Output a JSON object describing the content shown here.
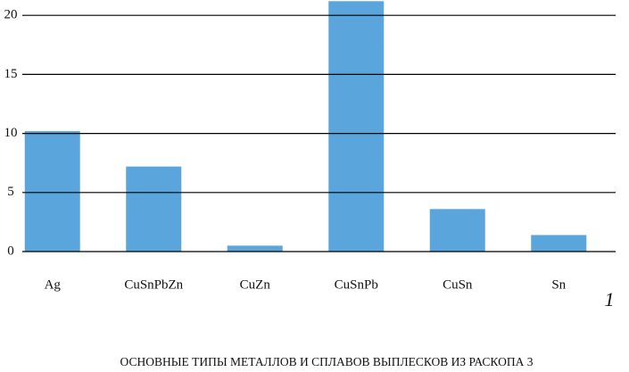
{
  "chart_data": {
    "type": "bar",
    "categories": [
      "Ag",
      "CuSnPbZn",
      "CuZn",
      "CuSnPb",
      "CuSn",
      "Sn"
    ],
    "values": [
      10.2,
      7.2,
      0.5,
      21.2,
      3.6,
      1.4
    ],
    "color": "#5aa5dc",
    "ylim": [
      0,
      21.3
    ],
    "yticks": [
      0,
      5,
      10,
      15,
      20
    ],
    "grid": true,
    "annotation": "1",
    "caption": "ОСНОВНЫЕ ТИПЫ МЕТАЛЛОВ И СПЛАВОВ ВЫПЛЕСКОВ ИЗ РАСКОПА 3"
  }
}
